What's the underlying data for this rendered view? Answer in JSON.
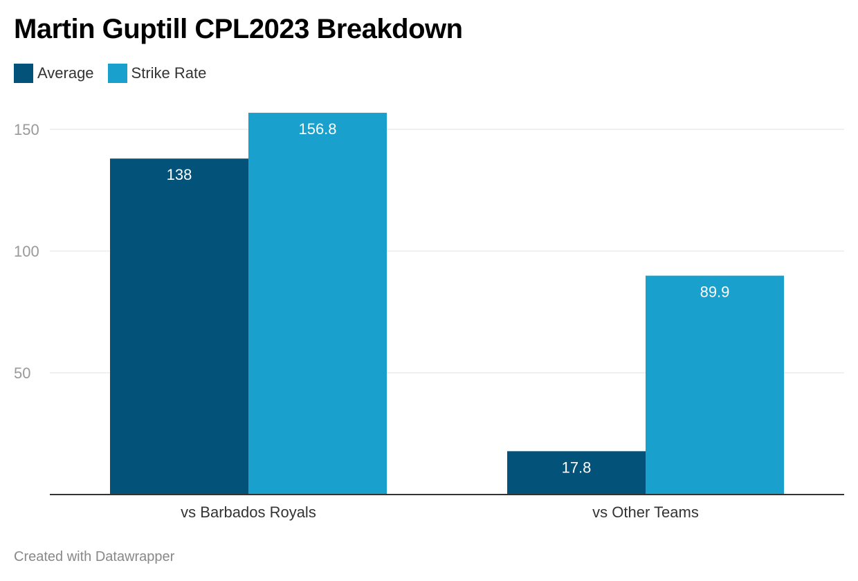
{
  "title": "Martin Guptill CPL2023 Breakdown",
  "footer": "Created with Datawrapper",
  "chart_data": {
    "type": "bar",
    "title": "Martin Guptill CPL2023 Breakdown",
    "categories": [
      "vs Barbados Royals",
      "vs Other Teams"
    ],
    "series": [
      {
        "name": "Average",
        "values": [
          138,
          17.8
        ],
        "labels": [
          "138",
          "17.8"
        ],
        "color": "#035279"
      },
      {
        "name": "Strike Rate",
        "values": [
          156.8,
          89.9
        ],
        "labels": [
          "156.8",
          "89.9"
        ],
        "color": "#19a0cd"
      }
    ],
    "yticks": [
      50,
      100,
      150
    ],
    "ylim": [
      0,
      160
    ],
    "grid": true,
    "legend": "top-left",
    "xlabel": "",
    "ylabel": ""
  }
}
